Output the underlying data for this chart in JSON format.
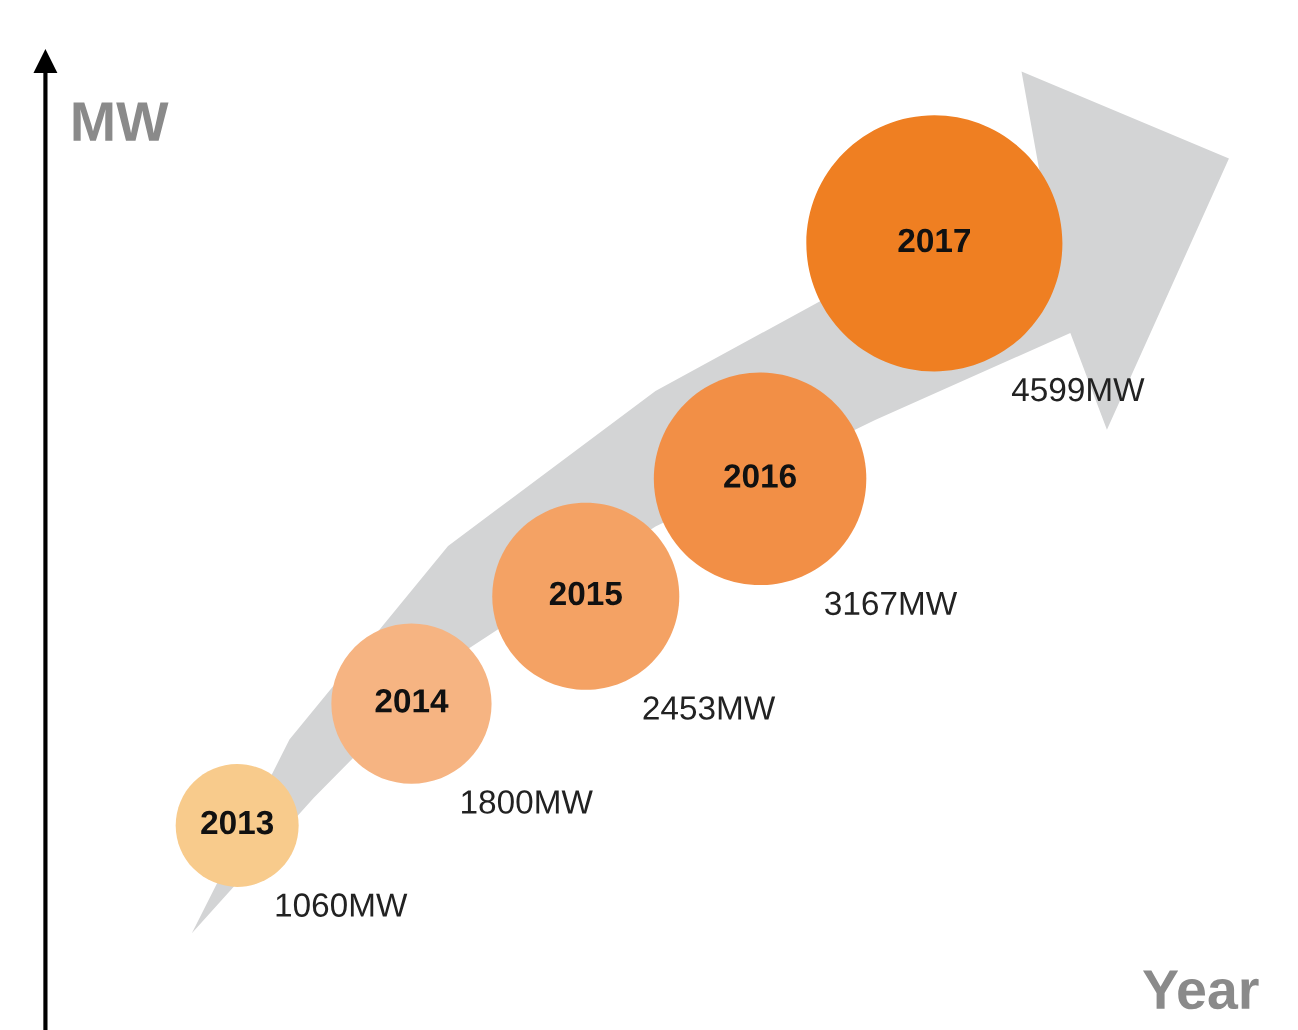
{
  "chart_data": {
    "type": "other",
    "xlabel": "Year",
    "ylabel": "MW",
    "categories": [
      "2013",
      "2014",
      "2015",
      "2016",
      "2017"
    ],
    "values": [
      1060,
      1800,
      2453,
      3167,
      4599
    ],
    "value_labels": [
      "1060MW",
      "1800MW",
      "2453MW",
      "3167MW",
      "4599MW"
    ],
    "colors": [
      "#f8cb8c",
      "#f6b482",
      "#f4a264",
      "#f28f46",
      "#ef7f22"
    ]
  }
}
